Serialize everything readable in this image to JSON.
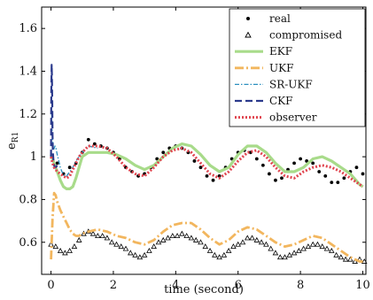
{
  "chart_data": {
    "type": "line",
    "xlabel": "time (second)",
    "ylabel": "e",
    "ylabel_subscript": "R1",
    "xlim": [
      -0.3,
      10.1
    ],
    "ylim": [
      0.45,
      1.7
    ],
    "xticks": [
      0,
      2,
      4,
      6,
      8,
      10
    ],
    "yticks": [
      0.6,
      0.8,
      1.0,
      1.2,
      1.4,
      1.6
    ],
    "xtick_labels": [
      "0",
      "2",
      "4",
      "6",
      "8",
      "10"
    ],
    "ytick_labels": [
      "0.6",
      "0.8",
      "1",
      "1.2",
      "1.4",
      "1.6"
    ],
    "legend_position": "top-right",
    "series": [
      {
        "name": "real",
        "kind": "dots",
        "color": "#000000",
        "x": [
          0.2,
          0.4,
          0.6,
          0.8,
          1.0,
          1.2,
          1.4,
          1.6,
          1.8,
          2.0,
          2.2,
          2.4,
          2.6,
          2.8,
          3.0,
          3.2,
          3.4,
          3.6,
          3.8,
          4.0,
          4.2,
          4.4,
          4.6,
          4.8,
          5.0,
          5.2,
          5.4,
          5.6,
          5.8,
          6.0,
          6.2,
          6.4,
          6.6,
          6.8,
          7.0,
          7.2,
          7.4,
          7.6,
          7.8,
          8.0,
          8.2,
          8.4,
          8.6,
          8.8,
          9.0,
          9.2,
          9.4,
          9.6,
          9.8,
          10.0
        ],
        "y": [
          0.97,
          0.92,
          0.95,
          0.97,
          1.02,
          1.08,
          1.06,
          1.05,
          1.04,
          1.02,
          0.99,
          0.95,
          0.93,
          0.91,
          0.92,
          0.95,
          0.99,
          1.02,
          1.04,
          1.05,
          1.04,
          1.02,
          0.98,
          0.95,
          0.91,
          0.89,
          0.91,
          0.95,
          0.99,
          1.02,
          1.03,
          1.02,
          0.99,
          0.96,
          0.92,
          0.89,
          0.9,
          0.94,
          0.97,
          0.99,
          0.98,
          0.97,
          0.93,
          0.91,
          0.88,
          0.88,
          0.9,
          0.93,
          0.95,
          0.92
        ]
      },
      {
        "name": "compromised",
        "kind": "triangles",
        "color": "#000000",
        "x": [
          0.0,
          0.15,
          0.3,
          0.45,
          0.6,
          0.75,
          0.9,
          1.05,
          1.2,
          1.35,
          1.5,
          1.65,
          1.8,
          1.95,
          2.1,
          2.25,
          2.4,
          2.55,
          2.7,
          2.85,
          3.0,
          3.15,
          3.3,
          3.45,
          3.6,
          3.75,
          3.9,
          4.05,
          4.2,
          4.35,
          4.5,
          4.65,
          4.8,
          4.95,
          5.1,
          5.25,
          5.4,
          5.55,
          5.7,
          5.85,
          6.0,
          6.15,
          6.3,
          6.45,
          6.6,
          6.75,
          6.9,
          7.05,
          7.2,
          7.35,
          7.5,
          7.65,
          7.8,
          7.95,
          8.1,
          8.25,
          8.4,
          8.55,
          8.7,
          8.85,
          9.0,
          9.15,
          9.3,
          9.45,
          9.6,
          9.75,
          9.9,
          10.05
        ],
        "y": [
          0.59,
          0.58,
          0.56,
          0.55,
          0.56,
          0.58,
          0.61,
          0.64,
          0.65,
          0.64,
          0.63,
          0.63,
          0.62,
          0.6,
          0.59,
          0.58,
          0.57,
          0.55,
          0.54,
          0.53,
          0.54,
          0.56,
          0.58,
          0.6,
          0.61,
          0.62,
          0.63,
          0.63,
          0.64,
          0.63,
          0.62,
          0.61,
          0.6,
          0.58,
          0.56,
          0.54,
          0.53,
          0.54,
          0.56,
          0.58,
          0.59,
          0.6,
          0.62,
          0.62,
          0.61,
          0.6,
          0.59,
          0.57,
          0.55,
          0.53,
          0.53,
          0.54,
          0.55,
          0.56,
          0.57,
          0.58,
          0.59,
          0.59,
          0.58,
          0.57,
          0.56,
          0.54,
          0.53,
          0.52,
          0.52,
          0.51,
          0.52,
          0.51
        ]
      },
      {
        "name": "EKF",
        "kind": "line",
        "style": "solid",
        "color": "#a8db8a",
        "x": [
          0.0,
          0.1,
          0.2,
          0.3,
          0.4,
          0.5,
          0.6,
          0.7,
          0.8,
          0.9,
          1.0,
          1.2,
          1.5,
          1.8,
          2.1,
          2.4,
          2.7,
          3.0,
          3.3,
          3.6,
          3.9,
          4.2,
          4.5,
          4.8,
          5.1,
          5.4,
          5.7,
          6.0,
          6.3,
          6.6,
          6.9,
          7.2,
          7.5,
          7.8,
          8.1,
          8.4,
          8.7,
          9.0,
          9.3,
          9.6,
          9.9,
          10.0
        ],
        "y": [
          1.01,
          0.97,
          0.93,
          0.89,
          0.86,
          0.85,
          0.85,
          0.86,
          0.9,
          0.95,
          1.0,
          1.02,
          1.02,
          1.02,
          1.01,
          0.99,
          0.96,
          0.94,
          0.96,
          1.0,
          1.04,
          1.06,
          1.05,
          1.01,
          0.96,
          0.93,
          0.95,
          1.01,
          1.05,
          1.05,
          1.02,
          0.97,
          0.93,
          0.93,
          0.95,
          0.99,
          1.0,
          0.98,
          0.95,
          0.92,
          0.87,
          0.86
        ]
      },
      {
        "name": "UKF",
        "kind": "line",
        "style": "dashdot",
        "color": "#f2b65e",
        "x": [
          0.0,
          0.05,
          0.1,
          0.15,
          0.2,
          0.3,
          0.4,
          0.5,
          0.6,
          0.7,
          0.8,
          0.9,
          1.0,
          1.2,
          1.5,
          1.8,
          2.1,
          2.4,
          2.7,
          3.0,
          3.3,
          3.6,
          3.9,
          4.2,
          4.5,
          4.8,
          5.1,
          5.4,
          5.7,
          6.0,
          6.3,
          6.6,
          6.9,
          7.2,
          7.5,
          7.8,
          8.1,
          8.4,
          8.7,
          9.0,
          9.3,
          9.6,
          9.9,
          10.0
        ],
        "y": [
          0.52,
          0.71,
          0.83,
          0.82,
          0.79,
          0.75,
          0.72,
          0.69,
          0.66,
          0.64,
          0.63,
          0.63,
          0.64,
          0.65,
          0.66,
          0.65,
          0.63,
          0.62,
          0.6,
          0.59,
          0.61,
          0.65,
          0.68,
          0.69,
          0.69,
          0.66,
          0.62,
          0.59,
          0.61,
          0.65,
          0.67,
          0.66,
          0.63,
          0.6,
          0.58,
          0.59,
          0.61,
          0.63,
          0.62,
          0.59,
          0.56,
          0.53,
          0.51,
          0.51
        ]
      },
      {
        "name": "SR-UKF",
        "kind": "line",
        "style": "dashdotted",
        "color": "#2b8fbf",
        "x": [
          0.02,
          0.04,
          0.06,
          0.08,
          0.1,
          0.13,
          0.16,
          0.2,
          0.25,
          0.3,
          0.35,
          0.4,
          0.45,
          0.5,
          0.6,
          0.7,
          0.8,
          0.9,
          1.0,
          1.2,
          1.5
        ],
        "y": [
          1.2,
          1.12,
          1.06,
          1.03,
          1.04,
          1.05,
          1.04,
          1.01,
          0.98,
          0.95,
          0.93,
          0.92,
          0.91,
          0.91,
          0.93,
          0.95,
          0.98,
          1.0,
          1.02,
          1.05,
          1.04
        ]
      },
      {
        "name": "CKF",
        "kind": "line",
        "style": "dashed",
        "color": "#2b3a8c",
        "x": [
          0.0,
          0.01,
          0.02,
          0.03,
          0.04,
          0.05,
          0.06,
          0.08,
          0.1,
          0.12,
          0.15,
          0.2
        ],
        "y": [
          1.0,
          1.3,
          1.43,
          1.38,
          1.25,
          1.1,
          1.02,
          0.98,
          0.96,
          0.95,
          0.95,
          0.96
        ]
      },
      {
        "name": "observer",
        "kind": "line",
        "style": "dotted",
        "color": "#e0454f",
        "x": [
          0.0,
          0.05,
          0.1,
          0.2,
          0.3,
          0.4,
          0.5,
          0.6,
          0.7,
          0.8,
          0.9,
          1.0,
          1.2,
          1.5,
          1.8,
          2.1,
          2.4,
          2.7,
          3.0,
          3.3,
          3.6,
          3.9,
          4.2,
          4.5,
          4.8,
          5.1,
          5.4,
          5.7,
          6.0,
          6.3,
          6.6,
          6.9,
          7.2,
          7.5,
          7.8,
          8.1,
          8.4,
          8.7,
          9.0,
          9.3,
          9.6,
          9.9,
          10.0
        ],
        "y": [
          1.0,
          0.97,
          0.95,
          0.93,
          0.92,
          0.91,
          0.9,
          0.91,
          0.94,
          0.97,
          1.0,
          1.02,
          1.05,
          1.05,
          1.04,
          1.0,
          0.95,
          0.92,
          0.91,
          0.95,
          1.0,
          1.03,
          1.04,
          1.02,
          0.97,
          0.92,
          0.9,
          0.93,
          0.98,
          1.02,
          1.03,
          1.0,
          0.95,
          0.91,
          0.9,
          0.93,
          0.95,
          0.96,
          0.95,
          0.93,
          0.9,
          0.87,
          0.86
        ]
      }
    ]
  }
}
